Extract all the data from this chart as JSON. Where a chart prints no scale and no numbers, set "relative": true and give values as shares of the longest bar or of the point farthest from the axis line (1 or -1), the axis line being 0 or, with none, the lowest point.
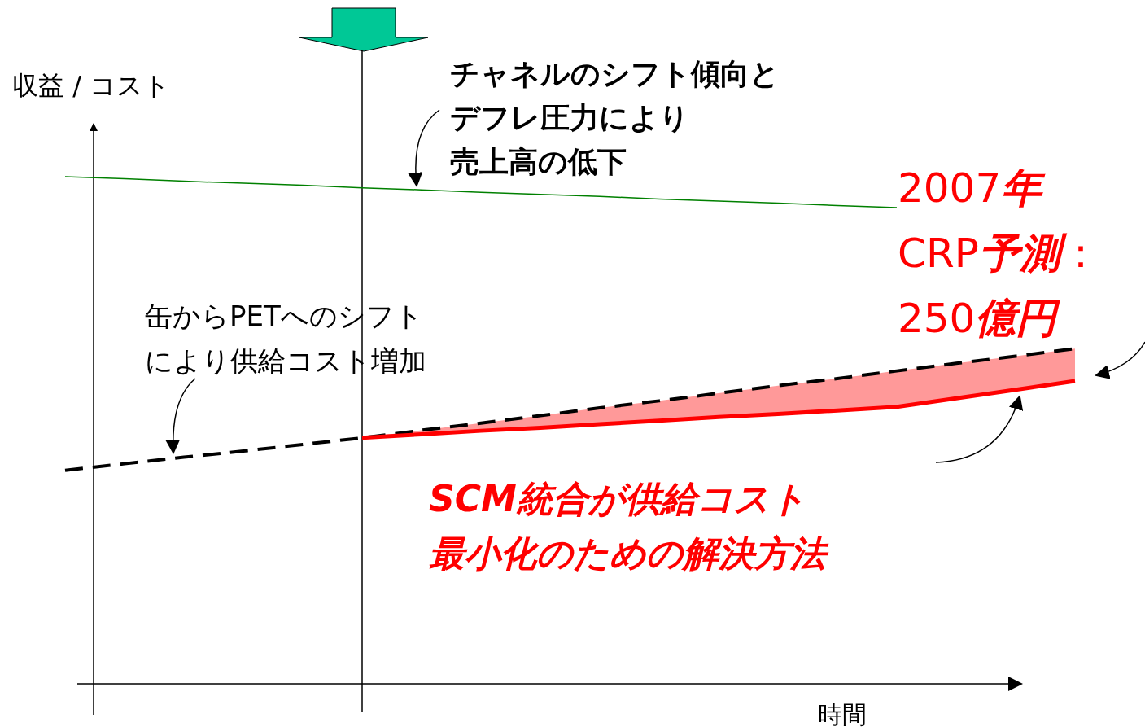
{
  "chart_data": {
    "type": "line",
    "relative": true,
    "ylabel": "収益 / コスト",
    "xlabel": "時間",
    "categories": [
      null,
      null,
      null,
      null,
      null,
      null,
      null,
      null,
      null,
      null,
      null,
      null,
      null,
      null,
      null,
      null,
      null,
      null
    ],
    "series": [
      {
        "color": "#008000",
        "line_style": "solid",
        "values": [
          1.0,
          0.996,
          0.991,
          0.987,
          0.983,
          0.978,
          0.974,
          0.969,
          0.965,
          0.961,
          0.956,
          0.952,
          0.948,
          0.943,
          0.939,
          null,
          null,
          null
        ]
      },
      {
        "color": "#000000",
        "line_style": "dashed",
        "values": [
          0.421,
          0.434,
          0.447,
          0.459,
          0.472,
          0.485,
          0.5,
          0.514,
          0.529,
          0.544,
          0.558,
          0.573,
          0.588,
          0.602,
          0.617,
          0.632,
          0.646,
          0.661
        ]
      },
      {
        "color": "#ff0000",
        "line_style": "solid",
        "values": [
          null,
          null,
          null,
          null,
          null,
          0.485,
          0.492,
          0.499,
          0.505,
          0.512,
          0.519,
          0.526,
          0.532,
          0.539,
          0.546,
          0.563,
          0.58,
          0.597
        ],
        "lower": [
          null,
          null,
          null,
          null,
          null,
          0.485,
          0.492,
          0.499,
          0.505,
          0.512,
          0.519,
          0.526,
          0.532,
          0.539,
          0.546,
          0.563,
          0.58,
          0.597
        ],
        "upper": [
          null,
          null,
          null,
          null,
          null,
          0.485,
          0.5,
          0.514,
          0.529,
          0.544,
          0.558,
          0.573,
          0.588,
          0.602,
          0.617,
          0.632,
          0.646,
          0.661
        ]
      }
    ],
    "annotations": [
      "チャネルのシフト傾向と",
      "デフレ圧力により",
      "売上高の低下",
      "缶からPETへのシフト",
      "により供給コスト増加",
      "2007年",
      "CRP予測：",
      "250億円",
      "SCM統合が供給コスト",
      "最小化のための解決方法"
    ]
  }
}
